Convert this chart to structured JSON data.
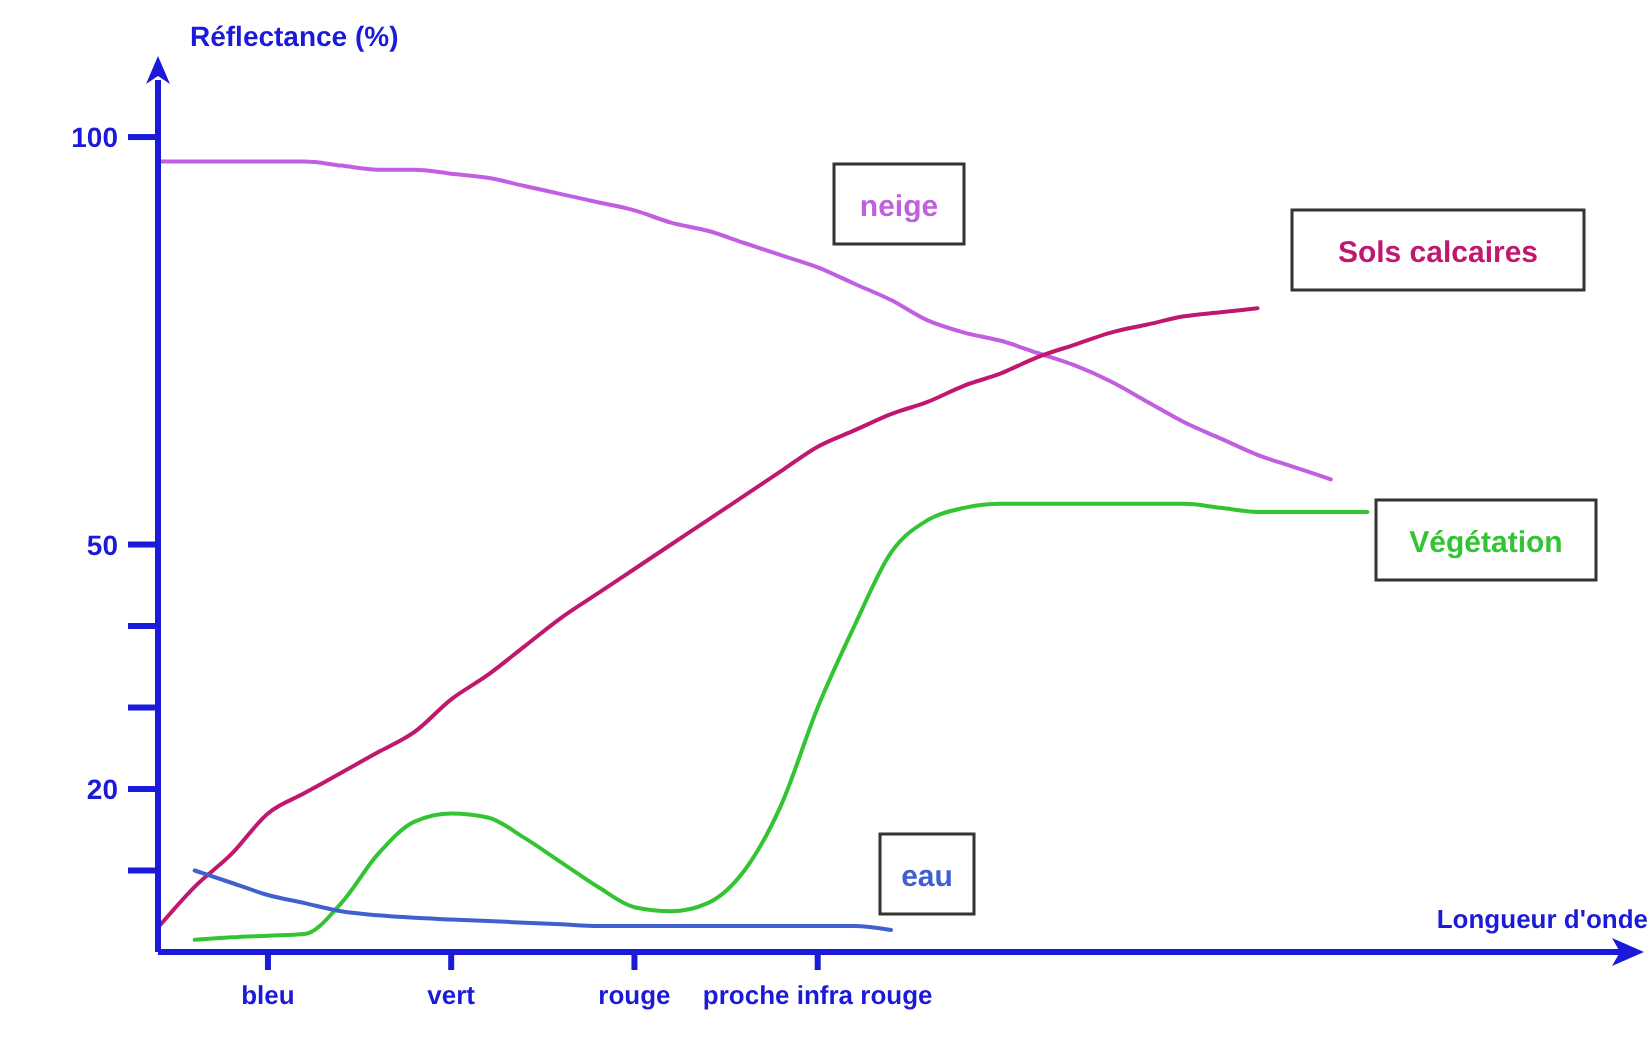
{
  "chart_data": {
    "type": "line",
    "xlabel": "Longueur d'onde",
    "ylabel": "Réflectance (%)",
    "categories": [
      null,
      null,
      null,
      "bleu",
      null,
      null,
      null,
      null,
      "vert",
      null,
      null,
      null,
      null,
      "rouge",
      null,
      null,
      null,
      null,
      "proche infra rouge",
      null,
      null,
      null,
      null,
      null,
      null,
      null,
      null,
      null,
      null,
      null,
      null,
      null,
      null,
      null,
      null,
      null,
      null,
      null,
      null,
      null,
      null
    ],
    "ylim": [
      0,
      107
    ],
    "yticks": [
      {
        "value": 10,
        "label": null
      },
      20,
      {
        "value": 30,
        "label": null
      },
      {
        "value": 40,
        "label": null
      },
      50,
      100
    ],
    "legend": false,
    "marker": "none",
    "line_style": "solid",
    "series": [
      {
        "name": "neige",
        "color": "#c060e0",
        "values": [
          97,
          97,
          97,
          97,
          97,
          96.5,
          96,
          96,
          95.5,
          95,
          94,
          93,
          92,
          91,
          89.5,
          88.5,
          87,
          85.5,
          84,
          82,
          80,
          77.5,
          76,
          75,
          73.5,
          72,
          70,
          67.5,
          65,
          63,
          61,
          59.5,
          58,
          null,
          null,
          null,
          null,
          null,
          null,
          null,
          null
        ]
      },
      {
        "name": "Sols calcaires",
        "color": "#c0186e",
        "values": [
          3,
          8,
          12,
          17,
          19.5,
          22,
          24.5,
          27,
          31,
          34,
          37.5,
          41,
          44,
          47,
          50,
          53,
          56,
          59,
          62,
          64,
          66,
          67.5,
          69.5,
          71,
          73,
          74.5,
          76,
          77,
          78,
          78.5,
          79,
          null,
          null,
          null,
          null,
          null,
          null,
          null,
          null,
          null,
          null
        ]
      },
      {
        "name": "Végétation",
        "color": "#33c433",
        "values": [
          null,
          1.5,
          1.8,
          2,
          2.2,
          6,
          12,
          16,
          17,
          16.5,
          14,
          11,
          8,
          5.5,
          5,
          6,
          10,
          18,
          30,
          40,
          49,
          53,
          54.5,
          55,
          55,
          55,
          55,
          55,
          55,
          54.5,
          54,
          54,
          54,
          54,
          null,
          null,
          null,
          null,
          null,
          null,
          null
        ]
      },
      {
        "name": "eau",
        "color": "#4060d0",
        "values": [
          null,
          10,
          8.5,
          7,
          6,
          5,
          4.5,
          4.2,
          4,
          3.8,
          3.6,
          3.4,
          3.2,
          3.2,
          3.2,
          3.2,
          3.2,
          3.2,
          3.2,
          3.2,
          2.7,
          null,
          null,
          null,
          null,
          null,
          null,
          null,
          null,
          null,
          null,
          null,
          null,
          null,
          null,
          null,
          null,
          null,
          null,
          null,
          null
        ]
      }
    ]
  }
}
